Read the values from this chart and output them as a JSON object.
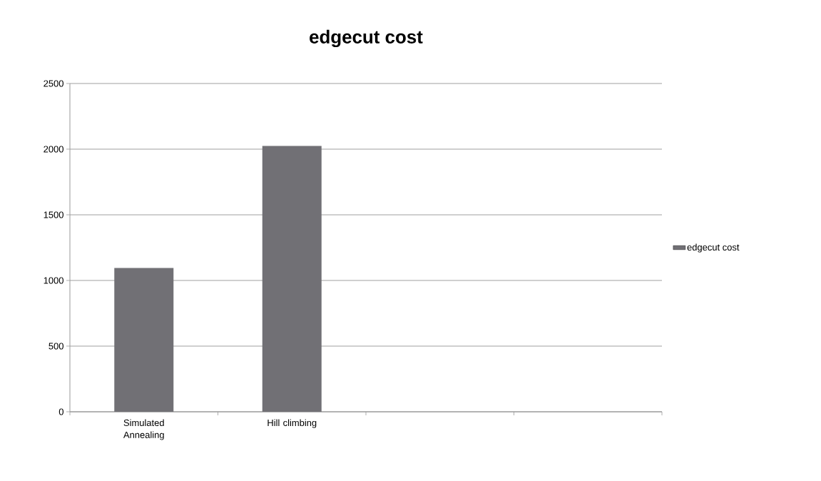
{
  "chart_data": {
    "type": "bar",
    "title": "edgecut cost",
    "categories": [
      "Simulated Annealing",
      "Hill climbing",
      null,
      null
    ],
    "series": [
      {
        "name": "edgecut cost",
        "color": "#717075",
        "values": [
          1095,
          2025,
          null,
          null
        ]
      }
    ],
    "ylim": [
      0,
      2500
    ],
    "yticks": [
      0,
      500,
      1000,
      1500,
      2000,
      2500
    ],
    "grid": "y",
    "legend": "right"
  }
}
